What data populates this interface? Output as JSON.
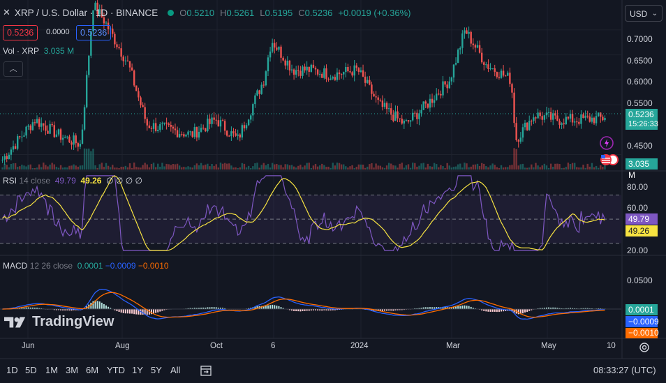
{
  "header": {
    "symbol": "XRP / U.S. Dollar · 1D · BINANCE",
    "close_icon": "close-icon",
    "open_label": "O",
    "open": "0.5210",
    "high_label": "H",
    "high": "0.5261",
    "low_label": "L",
    "low": "0.5195",
    "close_label": "C",
    "close": "0.5236",
    "change": "+0.0019 (+0.36%)",
    "sell_price": "0.5236",
    "spread": "0.0000",
    "buy_price": "0.5236",
    "currency": "USD"
  },
  "volume_legend": {
    "label": "Vol · XRP",
    "value": "3.035 M"
  },
  "price_axis": {
    "ticks": [
      "0.7000",
      "0.6500",
      "0.6000",
      "0.5500",
      "0.4500"
    ],
    "current_price": "0.5236",
    "countdown": "15:26:33",
    "volume_tag": "3.035 M"
  },
  "rsi_legend": {
    "label": "RSI",
    "params": "14 close",
    "rsi": "49.79",
    "ma": "49.26",
    "extra": "∅ ∅ ∅ ∅"
  },
  "rsi_axis": {
    "ticks": [
      "80.00",
      "60.00",
      "20.00"
    ],
    "rsi_tag": "49.79",
    "ma_tag": "49.26"
  },
  "macd_legend": {
    "label": "MACD",
    "params": "12 26 close",
    "hist": "0.0001",
    "macd": "−0.0009",
    "signal": "−0.0010"
  },
  "macd_axis": {
    "ticks": [
      "0.0500"
    ],
    "hist_tag": "0.0001",
    "macd_tag": "−0.0009",
    "signal_tag": "−0.0010"
  },
  "time_axis": [
    "Jun",
    "Aug",
    "Oct",
    "6",
    "2024",
    "Mar",
    "May",
    "10"
  ],
  "watermark": "TradingView",
  "bottom_bar": {
    "ranges": [
      "1D",
      "5D",
      "1M",
      "3M",
      "6M",
      "YTD",
      "1Y",
      "5Y",
      "All"
    ],
    "clock": "08:33:27 (UTC)"
  },
  "icons": [
    "close-icon",
    "market-open-dot",
    "chevron-down-icon",
    "collapse-chevron-up-icon",
    "flash-icon",
    "us-flag-icon",
    "calendar-range-icon",
    "settings-gear-icon"
  ],
  "chart_data": [
    {
      "type": "candlestick",
      "title": "XRP / U.S. Dollar · 1D · BINANCE",
      "x_range": [
        "2023-05",
        "2024-06-10"
      ],
      "ylim": [
        0.42,
        0.76
      ],
      "last": {
        "open": 0.521,
        "high": 0.5261,
        "low": 0.5195,
        "close": 0.5236
      },
      "series": [
        {
          "name": "XRP",
          "x": [
            "2023-05-15",
            "2023-06-05",
            "2023-06-20",
            "2023-07-05",
            "2023-07-13",
            "2023-07-20",
            "2023-08-05",
            "2023-08-17",
            "2023-09-01",
            "2023-09-15",
            "2023-10-01",
            "2023-10-15",
            "2023-11-01",
            "2023-11-06",
            "2023-11-20",
            "2023-12-01",
            "2023-12-15",
            "2024-01-01",
            "2024-01-15",
            "2024-02-01",
            "2024-02-15",
            "2024-03-01",
            "2024-03-11",
            "2024-03-25",
            "2024-04-10",
            "2024-04-13",
            "2024-04-25",
            "2024-05-10",
            "2024-05-25",
            "2024-06-10"
          ],
          "close": [
            0.44,
            0.52,
            0.49,
            0.47,
            0.75,
            0.72,
            0.63,
            0.51,
            0.5,
            0.49,
            0.52,
            0.48,
            0.6,
            0.68,
            0.62,
            0.62,
            0.61,
            0.62,
            0.55,
            0.51,
            0.55,
            0.6,
            0.7,
            0.63,
            0.6,
            0.48,
            0.53,
            0.52,
            0.52,
            0.5236
          ]
        }
      ]
    },
    {
      "type": "bar",
      "title": "Vol · XRP",
      "last_value": "3.035 M"
    },
    {
      "type": "line",
      "title": "RSI 14 close",
      "ylim": [
        20,
        90
      ],
      "bands": [
        70,
        50,
        30
      ],
      "series": [
        {
          "name": "RSI",
          "last": 49.79
        },
        {
          "name": "MA",
          "last": 49.26
        }
      ]
    },
    {
      "type": "line",
      "title": "MACD 12 26 close",
      "series": [
        {
          "name": "Histogram",
          "last": 0.0001
        },
        {
          "name": "MACD",
          "last": -0.0009
        },
        {
          "name": "Signal",
          "last": -0.001
        }
      ]
    }
  ],
  "colors": {
    "bg": "#131722",
    "up": "#26a69a",
    "down": "#ef5350",
    "rsi": "#7e57c2",
    "rsi_ma": "#f7e341",
    "macd": "#2962ff",
    "signal": "#ff6d00",
    "hist_up": "#b2dfdb",
    "hist_down": "#ffcdd2"
  }
}
